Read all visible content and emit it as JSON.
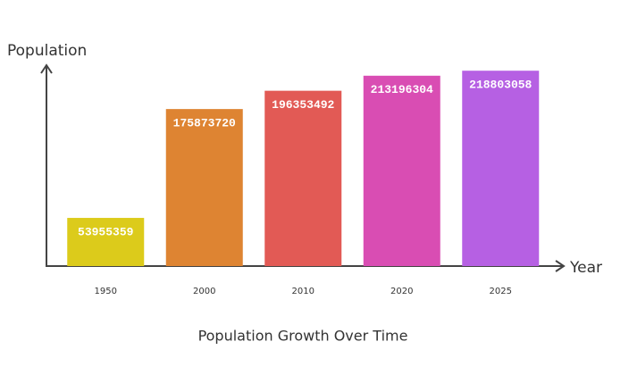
{
  "chart_data": {
    "type": "bar",
    "title": "Population Growth Over Time",
    "x_label": "Year",
    "y_label": "Population",
    "categories": [
      "1950",
      "2000",
      "2010",
      "2020",
      "2025"
    ],
    "values": [
      53955359,
      175873720,
      196353492,
      213196304,
      218803058
    ],
    "colors": [
      "#dccb1b",
      "#de8432",
      "#e25a55",
      "#d94db3",
      "#b660e3"
    ],
    "ylim": [
      0,
      220000000
    ]
  }
}
